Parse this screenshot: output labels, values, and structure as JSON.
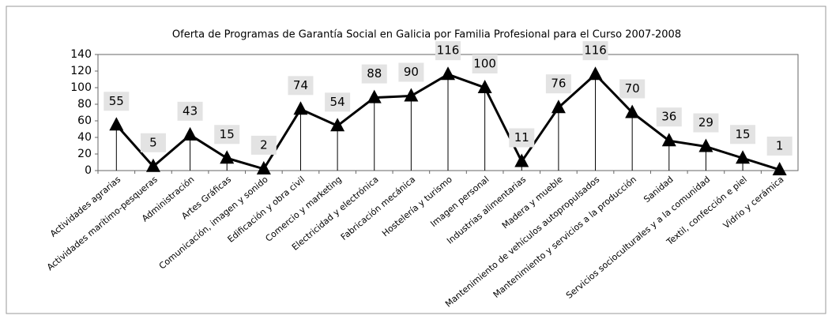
{
  "chart_data": {
    "type": "line",
    "title": "Oferta de Programas de Garantía Social en Galicia por Familia Profesional para el Curso 2007-2008",
    "categories": [
      "Actividades agrarias",
      "Actividades marítimo-pesqueras",
      "Administración",
      "Artes Gráficas",
      "Comunicación, imagen y sonido",
      "Edificación y obra civil",
      "Comercio y marketing",
      "Electricidad y electrónica",
      "Fabricación mecánica",
      "Hostelería y turismo",
      "Imagen personal",
      "Industrias alimentarias",
      "Madera y mueble",
      "Mantenimiento de vehículos autopropulsados",
      "Mantenimiento y servicios a la producción",
      "Sanidad",
      "Servicios socioculturales y a la comunidad",
      "Textil, confección e piel",
      "Vidrio y cerámica"
    ],
    "values": [
      55,
      5,
      43,
      15,
      2,
      74,
      54,
      88,
      90,
      116,
      100,
      11,
      76,
      116,
      70,
      36,
      29,
      15,
      1
    ],
    "color": "#000000",
    "ylim": [
      0,
      140
    ],
    "yticks": [
      0,
      20,
      40,
      60,
      80,
      100,
      120,
      140
    ],
    "grid": false
  }
}
